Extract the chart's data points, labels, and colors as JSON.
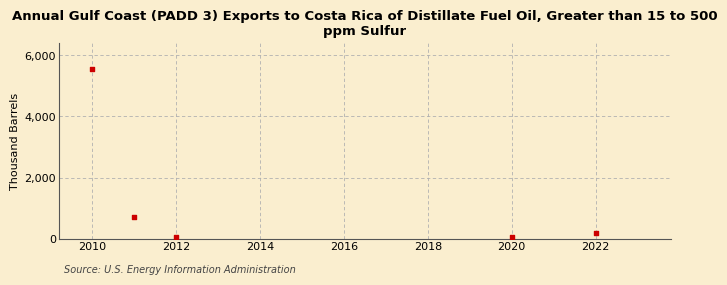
{
  "title": "Annual Gulf Coast (PADD 3) Exports to Costa Rica of Distillate Fuel Oil, Greater than 15 to 500\nppm Sulfur",
  "ylabel": "Thousand Barrels",
  "source": "Source: U.S. Energy Information Administration",
  "background_color": "#faeecf",
  "plot_bg_color": "#faeecf",
  "x_data": [
    2010,
    2011,
    2012,
    2020,
    2022
  ],
  "y_data": [
    5548,
    700,
    50,
    50,
    200
  ],
  "marker_color": "#cc0000",
  "xlim": [
    2009.2,
    2023.8
  ],
  "ylim": [
    0,
    6400
  ],
  "yticks": [
    0,
    2000,
    4000,
    6000
  ],
  "ytick_labels": [
    "0",
    "2,000",
    "4,000",
    "6,000"
  ],
  "xticks": [
    2010,
    2012,
    2014,
    2016,
    2018,
    2020,
    2022
  ],
  "grid_color": "#b0b0b0",
  "title_fontsize": 9.5,
  "axis_label_fontsize": 8,
  "tick_fontsize": 8,
  "source_fontsize": 7
}
